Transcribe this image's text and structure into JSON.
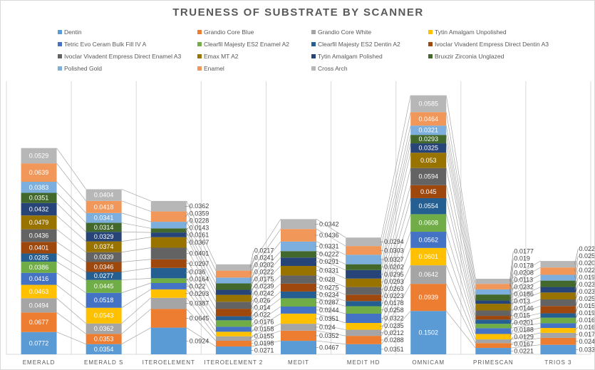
{
  "chart_data": {
    "type": "bar",
    "stacked": true,
    "title": "TRUENESS OF SUBSTRATE BY SCANNER",
    "xlabel": "",
    "ylabel": "",
    "ylim": [
      0,
      1
    ],
    "grid": "vertical category gridlines",
    "legend_position": "top",
    "categories": [
      "EMERALD",
      "EMERALD S",
      "ITEROELEMENT",
      "ITEROELEMENT 2",
      "MEDIT",
      "MEDIT HD",
      "OMNICAM",
      "PRIMESCAN",
      "TRIOS 3"
    ],
    "series": [
      {
        "name": "Dentin",
        "color": "#5B9BD5",
        "values": [
          0.0772,
          0.0354,
          0.0924,
          0.0271,
          0.0467,
          0.0351,
          0.1502,
          0.0221,
          0.033
        ]
      },
      {
        "name": "Grandio Core Blue",
        "color": "#ED7D31",
        "values": [
          0.0677,
          0.0353,
          0.0645,
          0.0198,
          0.0352,
          0.0288,
          0.0939,
          0.0167,
          0.024
        ]
      },
      {
        "name": "Grandio Core White",
        "color": "#A5A5A5",
        "values": [
          0.0494,
          0.0362,
          0.0387,
          0.0155,
          0.024,
          0.0212,
          0.0642,
          0.0129,
          0.0174
        ]
      },
      {
        "name": "Tytin Amalgam Unpolished",
        "color": "#FFC000",
        "values": [
          0.0463,
          0.0543,
          0.0293,
          0.0158,
          0.0351,
          0.0235,
          0.0601,
          0.0188,
          0.0169
        ]
      },
      {
        "name": "Tetric Evo Ceram Bulk Fill IV A",
        "color": "#4472C4",
        "values": [
          0.0416,
          0.0518,
          0.022,
          0.0176,
          0.0244,
          0.0322,
          0.0562,
          0.0201,
          0.0163
        ]
      },
      {
        "name": "Clearfil Majesty ES2 Enamel A2",
        "color": "#70AD47",
        "values": [
          0.0386,
          0.0445,
          0.0164,
          0.022,
          0.0287,
          0.0258,
          0.0608,
          0.015,
          0.0193
        ]
      },
      {
        "name": "Clearfil Majesty ES2 Dentin A2",
        "color": "#255E91",
        "values": [
          0.0285,
          0.0277,
          0.036,
          0.014,
          0.0234,
          0.0178,
          0.0554,
          0.0146,
          0.0152
        ]
      },
      {
        "name": "Ivoclar Vivadent Empress Direct Dentin A3",
        "color": "#9E480E",
        "values": [
          0.0401,
          0.0346,
          0.0297,
          0.026,
          0.0275,
          0.0223,
          0.045,
          0.013,
          0.025
        ]
      },
      {
        "name": "Ivoclar Vivadent Empress Direct Enamel A3",
        "color": "#636363",
        "values": [
          0.0436,
          0.0339,
          0.0401,
          0.0242,
          0.028,
          0.0263,
          0.0594,
          0.0186,
          0.023
        ]
      },
      {
        "name": "Emax MT A2",
        "color": "#997300",
        "values": [
          0.0479,
          0.0374,
          0.0367,
          0.0239,
          0.0331,
          0.0293,
          0.053,
          0.0232,
          0.0239
        ]
      },
      {
        "name": "Tytin Amalgam Polished",
        "color": "#264478",
        "values": [
          0.0432,
          0.0329,
          0.0161,
          0.0175,
          0.0291,
          0.0295,
          0.0325,
          0.0113,
          0.0192
        ]
      },
      {
        "name": "Bruxzir Zirconia Unglazed",
        "color": "#43682B",
        "values": [
          0.0351,
          0.0314,
          0.0143,
          0.0222,
          0.0222,
          0.0202,
          0.0293,
          0.0208,
          0.0221
        ]
      },
      {
        "name": "Polished Gold",
        "color": "#7CAFDD",
        "values": [
          0.0383,
          0.0341,
          0.0228,
          0.0202,
          0.0331,
          0.0327,
          0.0321,
          0.0178,
          0.0201
        ]
      },
      {
        "name": "Enamel",
        "color": "#F1975A",
        "values": [
          0.0639,
          0.0418,
          0.0359,
          0.0241,
          0.0436,
          0.0303,
          0.0464,
          0.019,
          0.0254
        ]
      },
      {
        "name": "Cross Arch",
        "color": "#B7B7B7",
        "values": [
          0.0529,
          0.0404,
          0.0362,
          0.0217,
          0.0342,
          0.0294,
          0.0585,
          0.0177,
          0.0225
        ]
      }
    ]
  }
}
